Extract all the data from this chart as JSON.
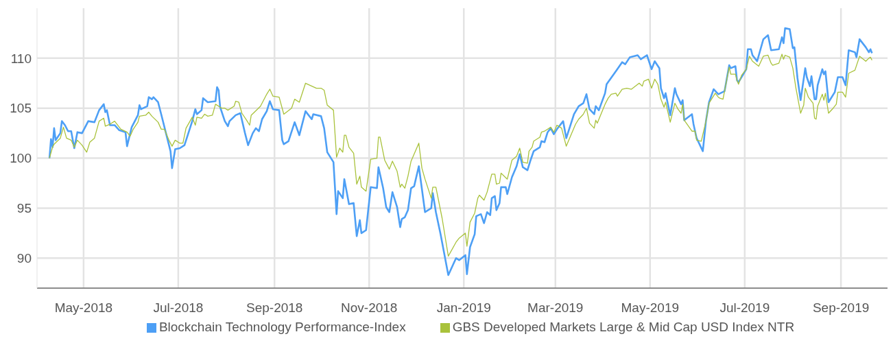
{
  "chart_data": {
    "type": "line",
    "xlim": [
      "2018-04-01",
      "2019-10-01"
    ],
    "xticks": [
      {
        "value": "2018-05-01",
        "label": "May-2018"
      },
      {
        "value": "2018-07-01",
        "label": "Jul-2018"
      },
      {
        "value": "2018-09-01",
        "label": "Sep-2018"
      },
      {
        "value": "2018-11-01",
        "label": "Nov-2018"
      },
      {
        "value": "2019-01-01",
        "label": "Jan-2019"
      },
      {
        "value": "2019-03-01",
        "label": "Mar-2019"
      },
      {
        "value": "2019-05-01",
        "label": "May-2019"
      },
      {
        "value": "2019-07-01",
        "label": "Jul-2019"
      },
      {
        "value": "2019-09-01",
        "label": "Sep-2019"
      }
    ],
    "ylim": [
      87,
      115
    ],
    "yticks": [
      90,
      95,
      100,
      105,
      110
    ],
    "grid": true,
    "legend": "bottom",
    "marker": "none",
    "line_style": "solid",
    "series": [
      {
        "name": "Blockchain Technology Performance-Index",
        "color": "#4d9ff5",
        "x": [
          "2018-04-09",
          "2018-04-10",
          "2018-04-11",
          "2018-04-12",
          "2018-04-13",
          "2018-04-16",
          "2018-04-17",
          "2018-04-19",
          "2018-04-21",
          "2018-04-23",
          "2018-04-25",
          "2018-04-27",
          "2018-04-30",
          "2018-05-04",
          "2018-05-08",
          "2018-05-11",
          "2018-05-14",
          "2018-05-15",
          "2018-05-16",
          "2018-05-18",
          "2018-05-21",
          "2018-05-24",
          "2018-05-28",
          "2018-05-29",
          "2018-06-01",
          "2018-06-05",
          "2018-06-06",
          "2018-06-07",
          "2018-06-11",
          "2018-06-12",
          "2018-06-14",
          "2018-06-15",
          "2018-06-18",
          "2018-06-20",
          "2018-06-26",
          "2018-06-27",
          "2018-06-29",
          "2018-07-02",
          "2018-07-05",
          "2018-07-10",
          "2018-07-12",
          "2018-07-13",
          "2018-07-16",
          "2018-07-17",
          "2018-07-20",
          "2018-07-25",
          "2018-07-26",
          "2018-07-27",
          "2018-07-28",
          "2018-07-31",
          "2018-08-02",
          "2018-08-03",
          "2018-08-07",
          "2018-08-10",
          "2018-08-13",
          "2018-08-15",
          "2018-08-18",
          "2018-08-20",
          "2018-08-22",
          "2018-08-24",
          "2018-08-27",
          "2018-08-29",
          "2018-08-31",
          "2018-09-04",
          "2018-09-06",
          "2018-09-07",
          "2018-09-10",
          "2018-09-14",
          "2018-09-17",
          "2018-09-21",
          "2018-09-25",
          "2018-09-26",
          "2018-10-01",
          "2018-10-03",
          "2018-10-05",
          "2018-10-09",
          "2018-10-11",
          "2018-10-12",
          "2018-10-15",
          "2018-10-16",
          "2018-10-19",
          "2018-10-22",
          "2018-10-24",
          "2018-10-26",
          "2018-10-27",
          "2018-10-30",
          "2018-11-02",
          "2018-11-06",
          "2018-11-07",
          "2018-11-10",
          "2018-11-12",
          "2018-11-14",
          "2018-11-16",
          "2018-11-19",
          "2018-11-21",
          "2018-11-22",
          "2018-11-24",
          "2018-11-26",
          "2018-11-28",
          "2018-11-30",
          "2018-12-03",
          "2018-12-05",
          "2018-12-07",
          "2018-12-11",
          "2018-12-12",
          "2018-12-14",
          "2018-12-17",
          "2018-12-22",
          "2018-12-27",
          "2018-12-29",
          "2019-01-02",
          "2019-01-03",
          "2019-01-05",
          "2019-01-08",
          "2019-01-09",
          "2019-01-12",
          "2019-01-14",
          "2019-01-16",
          "2019-01-18",
          "2019-01-19",
          "2019-01-21",
          "2019-01-22",
          "2019-01-24",
          "2019-01-25",
          "2019-01-28",
          "2019-01-29",
          "2019-02-01",
          "2019-02-04",
          "2019-02-06",
          "2019-02-08",
          "2019-02-11",
          "2019-02-13",
          "2019-02-15",
          "2019-02-19",
          "2019-02-20",
          "2019-02-22",
          "2019-02-24",
          "2019-02-26",
          "2019-02-28",
          "2019-03-02",
          "2019-03-06",
          "2019-03-08",
          "2019-03-13",
          "2019-03-16",
          "2019-03-19",
          "2019-03-21",
          "2019-03-23",
          "2019-03-26",
          "2019-03-27",
          "2019-03-29",
          "2019-04-02",
          "2019-04-03",
          "2019-04-09",
          "2019-04-13",
          "2019-04-15",
          "2019-04-18",
          "2019-04-23",
          "2019-04-25",
          "2019-04-29",
          "2019-05-02",
          "2019-05-04",
          "2019-05-07",
          "2019-05-08",
          "2019-05-10",
          "2019-05-11",
          "2019-05-14",
          "2019-05-17",
          "2019-05-18",
          "2019-05-21",
          "2019-05-22",
          "2019-05-23",
          "2019-05-28",
          "2019-05-29",
          "2019-05-31",
          "2019-06-04",
          "2019-06-06",
          "2019-06-08",
          "2019-06-11",
          "2019-06-14",
          "2019-06-18",
          "2019-06-21",
          "2019-06-22",
          "2019-06-25",
          "2019-06-26",
          "2019-06-27",
          "2019-07-02",
          "2019-07-03",
          "2019-07-05",
          "2019-07-06",
          "2019-07-09",
          "2019-07-13",
          "2019-07-16",
          "2019-07-18",
          "2019-07-23",
          "2019-07-25",
          "2019-07-26",
          "2019-07-27",
          "2019-07-30",
          "2019-08-01",
          "2019-08-02",
          "2019-08-04",
          "2019-08-06",
          "2019-08-09",
          "2019-08-10",
          "2019-08-12",
          "2019-08-13",
          "2019-08-15",
          "2019-08-16",
          "2019-08-17",
          "2019-08-20",
          "2019-08-21",
          "2019-08-22",
          "2019-08-24",
          "2019-08-28",
          "2019-08-30",
          "2019-09-02",
          "2019-09-04",
          "2019-09-06",
          "2019-09-10",
          "2019-09-11",
          "2019-09-13",
          "2019-09-14",
          "2019-09-17",
          "2019-09-19",
          "2019-09-20",
          "2019-09-21"
        ],
        "values": [
          100.0,
          101.9,
          101.1,
          103.0,
          101.8,
          102.5,
          103.7,
          103.3,
          102.7,
          102.7,
          101.0,
          102.6,
          102.5,
          103.7,
          103.6,
          104.8,
          105.4,
          104.6,
          104.8,
          103.3,
          103.3,
          102.8,
          102.6,
          101.2,
          103.1,
          104.3,
          105.3,
          104.9,
          105.2,
          106.1,
          105.9,
          106.1,
          105.6,
          104.4,
          100.7,
          99.0,
          100.9,
          101.0,
          101.3,
          103.7,
          104.9,
          104.4,
          104.8,
          106.0,
          105.6,
          105.7,
          107.1,
          106.8,
          105.1,
          103.7,
          103.2,
          103.7,
          104.3,
          104.5,
          102.5,
          101.3,
          102.5,
          103.0,
          102.7,
          103.9,
          104.7,
          105.7,
          104.9,
          104.8,
          101.8,
          101.4,
          101.7,
          103.6,
          102.3,
          104.7,
          103.9,
          104.4,
          104.2,
          103.0,
          100.6,
          99.6,
          94.4,
          96.7,
          96.0,
          97.9,
          95.4,
          95.5,
          92.2,
          93.8,
          92.5,
          92.8,
          97.1,
          97.0,
          99.1,
          97.0,
          95.1,
          94.6,
          96.6,
          95.1,
          93.1,
          93.9,
          94.1,
          94.8,
          97.0,
          97.2,
          99.2,
          96.9,
          94.6,
          95.0,
          96.5,
          94.6,
          92.4,
          88.3,
          90.0,
          89.8,
          90.3,
          88.4,
          91.1,
          92.4,
          94.2,
          94.4,
          93.5,
          94.6,
          94.3,
          96.0,
          96.2,
          94.8,
          95.5,
          97.1,
          97.1,
          96.4,
          98.1,
          99.2,
          100.4,
          99.1,
          98.8,
          99.8,
          100.7,
          101.1,
          101.7,
          101.6,
          102.6,
          103.0,
          102.4,
          102.9,
          103.7,
          102.0,
          104.4,
          105.2,
          105.5,
          106.4,
          104.9,
          104.4,
          105.2,
          104.8,
          106.5,
          107.4,
          108.7,
          109.6,
          109.4,
          110.1,
          110.3,
          109.9,
          110.3,
          108.9,
          109.7,
          109.0,
          107.0,
          106.0,
          106.5,
          104.3,
          107.0,
          106.4,
          105.4,
          105.8,
          103.8,
          104.4,
          103.4,
          102.0,
          100.7,
          103.7,
          105.6,
          106.9,
          106.4,
          106.7,
          109.3,
          109.0,
          109.2,
          107.8,
          107.6,
          108.9,
          110.9,
          110.9,
          110.3,
          109.7,
          111.9,
          112.3,
          110.8,
          110.9,
          112.1,
          111.5,
          113.0,
          112.9,
          111.0,
          111.1,
          108.0,
          105.8,
          109.0,
          108.1,
          107.2,
          108.2,
          105.9,
          105.9,
          107.3,
          108.9,
          108.4,
          108.7,
          105.6,
          106.6,
          108.1,
          108.1,
          107.3,
          110.8,
          110.6,
          110.1,
          111.9,
          111.7,
          111.1,
          110.6,
          110.9,
          110.5
        ]
      },
      {
        "name": "GBS Developed Markets Large & Mid Cap USD Index NTR",
        "color": "#a9c23b",
        "x": [
          "2018-04-09",
          "2018-04-11",
          "2018-04-12",
          "2018-04-16",
          "2018-04-18",
          "2018-04-20",
          "2018-04-23",
          "2018-04-25",
          "2018-04-27",
          "2018-04-30",
          "2018-05-03",
          "2018-05-05",
          "2018-05-08",
          "2018-05-11",
          "2018-05-14",
          "2018-05-15",
          "2018-05-18",
          "2018-05-21",
          "2018-05-25",
          "2018-05-29",
          "2018-05-31",
          "2018-06-02",
          "2018-06-05",
          "2018-06-06",
          "2018-06-10",
          "2018-06-12",
          "2018-06-14",
          "2018-06-18",
          "2018-06-20",
          "2018-06-22",
          "2018-06-25",
          "2018-06-27",
          "2018-06-29",
          "2018-07-02",
          "2018-07-04",
          "2018-07-06",
          "2018-07-10",
          "2018-07-12",
          "2018-07-13",
          "2018-07-16",
          "2018-07-18",
          "2018-07-20",
          "2018-07-23",
          "2018-07-25",
          "2018-07-29",
          "2018-07-31",
          "2018-08-02",
          "2018-08-06",
          "2018-08-07",
          "2018-08-09",
          "2018-08-11",
          "2018-08-14",
          "2018-08-16",
          "2018-08-17",
          "2018-08-21",
          "2018-08-23",
          "2018-08-27",
          "2018-08-29",
          "2018-08-31",
          "2018-09-04",
          "2018-09-07",
          "2018-09-12",
          "2018-09-14",
          "2018-09-17",
          "2018-09-21",
          "2018-09-28",
          "2018-10-01",
          "2018-10-03",
          "2018-10-05",
          "2018-10-09",
          "2018-10-11",
          "2018-10-13",
          "2018-10-15",
          "2018-10-16",
          "2018-10-17",
          "2018-10-19",
          "2018-10-22",
          "2018-10-24",
          "2018-10-26",
          "2018-10-27",
          "2018-10-30",
          "2018-11-02",
          "2018-11-06",
          "2018-11-07",
          "2018-11-08",
          "2018-11-11",
          "2018-11-14",
          "2018-11-16",
          "2018-11-19",
          "2018-11-21",
          "2018-11-22",
          "2018-11-24",
          "2018-11-26",
          "2018-11-28",
          "2018-12-03",
          "2018-12-05",
          "2018-12-07",
          "2018-12-11",
          "2018-12-12",
          "2018-12-14",
          "2018-12-18",
          "2018-12-22",
          "2018-12-27",
          "2018-12-29",
          "2019-01-02",
          "2019-01-03",
          "2019-01-05",
          "2019-01-08",
          "2019-01-10",
          "2019-01-11",
          "2019-01-14",
          "2019-01-16",
          "2019-01-19",
          "2019-01-21",
          "2019-01-22",
          "2019-01-24",
          "2019-01-25",
          "2019-01-29",
          "2019-02-01",
          "2019-02-04",
          "2019-02-06",
          "2019-02-08",
          "2019-02-11",
          "2019-02-12",
          "2019-02-14",
          "2019-02-15",
          "2019-02-19",
          "2019-02-20",
          "2019-02-22",
          "2019-02-26",
          "2019-02-28",
          "2019-03-02",
          "2019-03-05",
          "2019-03-08",
          "2019-03-14",
          "2019-03-16",
          "2019-03-19",
          "2019-03-21",
          "2019-03-23",
          "2019-03-26",
          "2019-03-27",
          "2019-03-28",
          "2019-04-02",
          "2019-04-04",
          "2019-04-06",
          "2019-04-09",
          "2019-04-10",
          "2019-04-13",
          "2019-04-16",
          "2019-04-19",
          "2019-04-24",
          "2019-04-26",
          "2019-04-27",
          "2019-04-30",
          "2019-05-02",
          "2019-05-04",
          "2019-05-06",
          "2019-05-08",
          "2019-05-10",
          "2019-05-11",
          "2019-05-14",
          "2019-05-17",
          "2019-05-19",
          "2019-05-21",
          "2019-05-22",
          "2019-05-23",
          "2019-05-28",
          "2019-05-30",
          "2019-05-31",
          "2019-06-03",
          "2019-06-06",
          "2019-06-08",
          "2019-06-12",
          "2019-06-14",
          "2019-06-15",
          "2019-06-17",
          "2019-06-21",
          "2019-06-22",
          "2019-06-25",
          "2019-06-26",
          "2019-06-27",
          "2019-06-29",
          "2019-07-02",
          "2019-07-04",
          "2019-07-06",
          "2019-07-10",
          "2019-07-13",
          "2019-07-16",
          "2019-07-18",
          "2019-07-19",
          "2019-07-23",
          "2019-07-25",
          "2019-07-26",
          "2019-07-27",
          "2019-07-30",
          "2019-08-01",
          "2019-08-03",
          "2019-08-06",
          "2019-08-08",
          "2019-08-09",
          "2019-08-11",
          "2019-08-14",
          "2019-08-15",
          "2019-08-16",
          "2019-08-17",
          "2019-08-20",
          "2019-08-21",
          "2019-08-22",
          "2019-08-24",
          "2019-08-27",
          "2019-08-29",
          "2019-08-30",
          "2019-09-02",
          "2019-09-04",
          "2019-09-06",
          "2019-09-10",
          "2019-09-13",
          "2019-09-17",
          "2019-09-19",
          "2019-09-20",
          "2019-09-21"
        ],
        "values": [
          100.0,
          101.1,
          101.4,
          102.0,
          103.1,
          102.0,
          101.8,
          101.1,
          101.8,
          101.3,
          100.6,
          101.6,
          102.0,
          103.7,
          104.0,
          103.2,
          103.4,
          103.7,
          102.9,
          102.6,
          102.2,
          102.9,
          103.6,
          104.2,
          104.3,
          104.6,
          104.2,
          103.6,
          102.9,
          102.9,
          101.8,
          101.2,
          101.8,
          101.5,
          101.5,
          103.0,
          104.1,
          103.3,
          104.1,
          104.0,
          104.4,
          104.2,
          104.3,
          105.4,
          105.0,
          105.0,
          104.8,
          105.2,
          105.7,
          105.6,
          104.5,
          103.8,
          103.3,
          104.3,
          104.9,
          105.2,
          106.4,
          106.9,
          106.2,
          106.1,
          104.4,
          105.0,
          105.9,
          105.6,
          107.5,
          107.0,
          107.0,
          106.8,
          105.3,
          104.8,
          100.1,
          101.0,
          100.6,
          102.3,
          102.3,
          101.1,
          100.5,
          97.4,
          98.2,
          97.1,
          96.7,
          99.9,
          100.0,
          102.1,
          102.1,
          99.8,
          98.9,
          99.7,
          98.7,
          97.1,
          97.4,
          97.0,
          98.2,
          99.7,
          101.5,
          99.0,
          97.9,
          96.0,
          97.1,
          97.1,
          94.0,
          90.2,
          91.6,
          92.0,
          92.5,
          91.2,
          93.6,
          94.5,
          96.0,
          96.3,
          95.8,
          96.6,
          98.4,
          98.4,
          97.4,
          97.5,
          98.5,
          97.9,
          99.8,
          100.2,
          101.0,
          99.6,
          99.5,
          100.7,
          101.1,
          101.7,
          102.1,
          102.6,
          102.7,
          103.1,
          102.6,
          103.3,
          103.0,
          101.2,
          103.4,
          103.9,
          104.4,
          105.0,
          103.5,
          103.0,
          103.8,
          103.5,
          105.4,
          106.0,
          106.4,
          106.5,
          106.2,
          106.9,
          107.0,
          106.9,
          107.5,
          107.2,
          107.7,
          107.9,
          107.0,
          107.9,
          107.4,
          105.9,
          105.1,
          105.6,
          103.6,
          105.5,
          104.9,
          104.5,
          105.4,
          103.8,
          102.7,
          102.7,
          101.8,
          101.7,
          103.7,
          105.5,
          106.5,
          106.1,
          106.0,
          105.9,
          109.1,
          108.4,
          108.4,
          107.8,
          107.4,
          108.3,
          108.9,
          110.2,
          109.7,
          109.2,
          110.2,
          110.3,
          109.5,
          109.3,
          109.5,
          110.4,
          109.9,
          110.3,
          110.1,
          109.0,
          107.0,
          104.5,
          105.3,
          107.0,
          106.1,
          105.5,
          104.0,
          103.9,
          105.2,
          106.4,
          105.8,
          106.5,
          104.5,
          105.0,
          105.4,
          106.6,
          106.6,
          106.1,
          108.5,
          108.8,
          110.2,
          109.7,
          110.0,
          110.1,
          109.8
        ]
      }
    ]
  }
}
